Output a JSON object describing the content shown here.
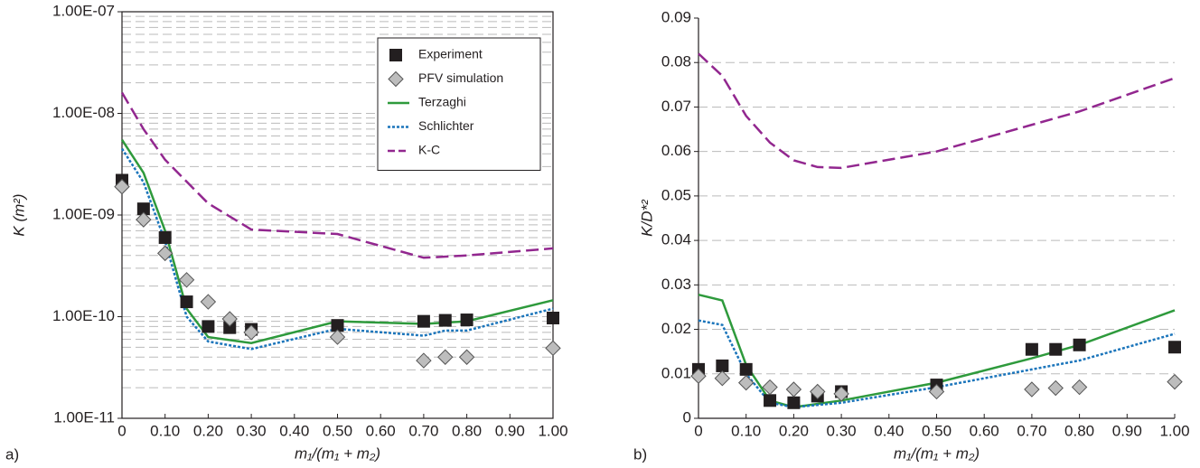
{
  "chart_data": [
    {
      "type": "line",
      "panel_label": "a)",
      "xlabel": "m₁/(m₁ + m₂)",
      "ylabel": "K (m²)",
      "log_y": true,
      "grid": true,
      "minor_grid": true,
      "frame": true,
      "legend": "upper right",
      "xlim": [
        0,
        1
      ],
      "xticks": [
        0,
        {
          "value": 0.1,
          "label": "0.10"
        },
        {
          "value": 0.2,
          "label": "0.20"
        },
        {
          "value": 0.3,
          "label": "0.30"
        },
        {
          "value": 0.4,
          "label": "0.40"
        },
        {
          "value": 0.5,
          "label": "0.50"
        },
        {
          "value": 0.6,
          "label": "0.60"
        },
        {
          "value": 0.7,
          "label": "0.70"
        },
        {
          "value": 0.8,
          "label": "0.80"
        },
        {
          "value": 0.9,
          "label": "0.90"
        },
        {
          "value": 1,
          "label": "1.00"
        }
      ],
      "ylim": [
        1e-11,
        1e-07
      ],
      "yticks": [
        {
          "value": 1e-11,
          "label": "1.00E-11"
        },
        {
          "value": 1e-10,
          "label": "1.00E-10"
        },
        {
          "value": 1e-09,
          "label": "1.00E-09"
        },
        {
          "value": 1e-08,
          "label": "1.00E-08"
        },
        {
          "value": 1e-07,
          "label": "1.00E-07"
        }
      ],
      "series": [
        {
          "name": "Experiment",
          "style": "square",
          "color": "#231f20",
          "x": [
            0,
            0.05,
            0.1,
            0.15,
            0.2,
            0.25,
            0.3,
            0.5,
            0.7,
            0.75,
            0.8,
            1
          ],
          "values": [
            2.2e-09,
            1.15e-09,
            6e-10,
            1.4e-10,
            8e-11,
            7.8e-11,
            7.5e-11,
            8.2e-11,
            9e-11,
            9.2e-11,
            9.3e-11,
            9.7e-11
          ]
        },
        {
          "name": "PFV simulation",
          "style": "diamond",
          "color": "#bdbdbd",
          "x": [
            0,
            0.05,
            0.1,
            0.15,
            0.2,
            0.25,
            0.3,
            0.5,
            0.7,
            0.75,
            0.8,
            1
          ],
          "values": [
            1.9e-09,
            9e-10,
            4.2e-10,
            2.3e-10,
            1.4e-10,
            9.5e-11,
            7e-11,
            6.3e-11,
            3.7e-11,
            4e-11,
            4e-11,
            4.9e-11
          ]
        },
        {
          "name": "Terzaghi",
          "style": "solid",
          "color": "#2e9a3c",
          "x": [
            0,
            0.05,
            0.1,
            0.15,
            0.2,
            0.3,
            0.5,
            0.7,
            0.8,
            1
          ],
          "values": [
            5.5e-09,
            2.6e-09,
            7e-10,
            1.2e-10,
            6.3e-11,
            5.5e-11,
            9e-11,
            8.5e-11,
            9e-11,
            1.45e-10
          ]
        },
        {
          "name": "Schlichter",
          "style": "dotted",
          "color": "#1b75bb",
          "x": [
            0,
            0.05,
            0.1,
            0.15,
            0.2,
            0.3,
            0.5,
            0.7,
            0.75,
            0.8,
            1
          ],
          "values": [
            4.5e-09,
            2.1e-09,
            5.5e-10,
            1e-10,
            5.7e-11,
            4.8e-11,
            7.6e-11,
            6.5e-11,
            7.3e-11,
            7.3e-11,
            1.2e-10
          ]
        },
        {
          "name": "K-C",
          "style": "dashed",
          "color": "#92278f",
          "x": [
            0,
            0.05,
            0.1,
            0.2,
            0.3,
            0.5,
            0.7,
            0.8,
            1
          ],
          "values": [
            1.6e-08,
            7e-09,
            3.5e-09,
            1.3e-09,
            7.2e-10,
            6.5e-10,
            3.8e-10,
            4e-10,
            4.7e-10
          ]
        }
      ]
    },
    {
      "type": "line",
      "panel_label": "b)",
      "xlabel": "m₁/(m₁ + m₂)",
      "ylabel": "K/D*²",
      "log_y": false,
      "grid": true,
      "minor_grid": false,
      "frame": false,
      "legend": "none",
      "xlim": [
        0,
        1
      ],
      "xticks": [
        0,
        {
          "value": 0.1,
          "label": "0.10"
        },
        {
          "value": 0.2,
          "label": "0.20"
        },
        {
          "value": 0.3,
          "label": "0.30"
        },
        {
          "value": 0.4,
          "label": "0.40"
        },
        {
          "value": 0.5,
          "label": "0.50"
        },
        {
          "value": 0.6,
          "label": "0.60"
        },
        {
          "value": 0.7,
          "label": "0.70"
        },
        {
          "value": 0.8,
          "label": "0.80"
        },
        {
          "value": 0.9,
          "label": "0.90"
        },
        {
          "value": 1,
          "label": "1.00"
        }
      ],
      "ylim": [
        0,
        0.09
      ],
      "yticks": [
        0,
        0.01,
        0.02,
        0.03,
        0.04,
        0.05,
        0.06,
        0.07,
        0.08,
        0.09
      ],
      "series": [
        {
          "style": "square",
          "color": "#231f20",
          "x": [
            0,
            0.05,
            0.1,
            0.15,
            0.2,
            0.25,
            0.3,
            0.5,
            0.7,
            0.75,
            0.8,
            1
          ],
          "values": [
            0.011,
            0.0118,
            0.011,
            0.004,
            0.0035,
            0.005,
            0.006,
            0.0075,
            0.0155,
            0.0155,
            0.0165,
            0.016
          ]
        },
        {
          "style": "diamond",
          "color": "#bdbdbd",
          "x": [
            0,
            0.05,
            0.1,
            0.15,
            0.2,
            0.25,
            0.3,
            0.5,
            0.7,
            0.75,
            0.8,
            1
          ],
          "values": [
            0.0095,
            0.009,
            0.008,
            0.007,
            0.0065,
            0.006,
            0.0055,
            0.006,
            0.0065,
            0.0068,
            0.007,
            0.0082
          ]
        },
        {
          "style": "solid",
          "color": "#2e9a3c",
          "x": [
            0,
            0.05,
            0.1,
            0.15,
            0.2,
            0.3,
            0.5,
            0.7,
            0.8,
            1
          ],
          "values": [
            0.0278,
            0.0265,
            0.012,
            0.004,
            0.0025,
            0.004,
            0.008,
            0.0135,
            0.0165,
            0.0243
          ]
        },
        {
          "style": "dotted",
          "color": "#1b75bb",
          "x": [
            0,
            0.05,
            0.1,
            0.15,
            0.2,
            0.3,
            0.5,
            0.7,
            0.8,
            1
          ],
          "values": [
            0.022,
            0.021,
            0.01,
            0.0035,
            0.0025,
            0.0035,
            0.007,
            0.011,
            0.013,
            0.019
          ]
        },
        {
          "style": "dashed",
          "color": "#92278f",
          "x": [
            0,
            0.05,
            0.1,
            0.15,
            0.2,
            0.25,
            0.3,
            0.5,
            0.7,
            0.8,
            1
          ],
          "values": [
            0.082,
            0.077,
            0.068,
            0.062,
            0.058,
            0.0565,
            0.0563,
            0.06,
            0.066,
            0.069,
            0.0765
          ]
        }
      ]
    }
  ]
}
